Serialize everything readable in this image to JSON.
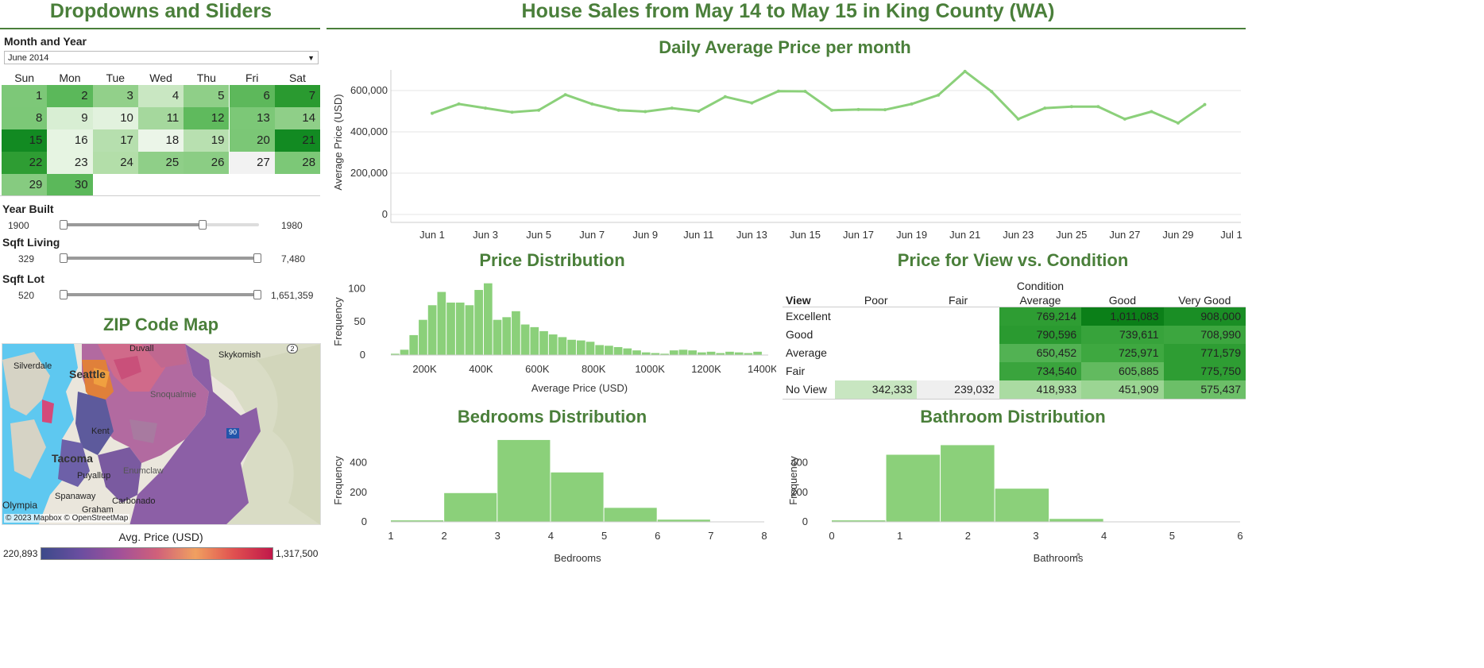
{
  "left_panel": {
    "title": "Dropdowns and Sliders",
    "month_year": {
      "label": "Month and Year",
      "value": "June 2014"
    },
    "calendar": {
      "weekdays": [
        "Sun",
        "Mon",
        "Tue",
        "Wed",
        "Thu",
        "Fri",
        "Sat"
      ],
      "days": [
        {
          "d": "1",
          "c": "#7dc878"
        },
        {
          "d": "2",
          "c": "#5bb85a"
        },
        {
          "d": "3",
          "c": "#92d08a"
        },
        {
          "d": "4",
          "c": "#c9e7c2"
        },
        {
          "d": "5",
          "c": "#8fcf88"
        },
        {
          "d": "6",
          "c": "#5db85b"
        },
        {
          "d": "7",
          "c": "#2a9a30"
        },
        {
          "d": "8",
          "c": "#7cc877"
        },
        {
          "d": "9",
          "c": "#d8eed3"
        },
        {
          "d": "10",
          "c": "#e2f2de"
        },
        {
          "d": "11",
          "c": "#a5d89d"
        },
        {
          "d": "12",
          "c": "#5fba5d"
        },
        {
          "d": "13",
          "c": "#7cc877"
        },
        {
          "d": "14",
          "c": "#8fcf88"
        },
        {
          "d": "15",
          "c": "#128a22"
        },
        {
          "d": "16",
          "c": "#e6f4e2"
        },
        {
          "d": "17",
          "c": "#b6dfae"
        },
        {
          "d": "18",
          "c": "#ebf5e8"
        },
        {
          "d": "19",
          "c": "#b8e0b0"
        },
        {
          "d": "20",
          "c": "#7bc776"
        },
        {
          "d": "21",
          "c": "#128a22"
        },
        {
          "d": "22",
          "c": "#2e9d33"
        },
        {
          "d": "23",
          "c": "#e6f4e2"
        },
        {
          "d": "24",
          "c": "#b3dea9"
        },
        {
          "d": "25",
          "c": "#8fcf88"
        },
        {
          "d": "26",
          "c": "#8bcd84"
        },
        {
          "d": "27",
          "c": "#f2f2f2"
        },
        {
          "d": "28",
          "c": "#7cc877"
        },
        {
          "d": "29",
          "c": "#86cb80"
        },
        {
          "d": "30",
          "c": "#5bb85a"
        }
      ]
    },
    "sliders": [
      {
        "label": "Year Built",
        "min_text": "1900",
        "max_text": "1980",
        "low": 0.0,
        "high": 0.72
      },
      {
        "label": "Sqft Living",
        "min_text": "329",
        "max_text": "7,480",
        "low": 0.0,
        "high": 1.0
      },
      {
        "label": "Sqft Lot",
        "min_text": "520",
        "max_text": "1,651,359",
        "low": 0.0,
        "high": 1.0
      }
    ],
    "map": {
      "title": "ZIP Code Map",
      "places": [
        "Skykomish",
        "Silverdale",
        "Seattle",
        "Duvall",
        "Snoqualmie",
        "Kent",
        "Tacoma",
        "Puyallup",
        "Enumclaw",
        "Spanaway",
        "Carbonado",
        "Graham",
        "Olympia"
      ],
      "highway_labels": [
        "2",
        "90"
      ],
      "attribution": "© 2023 Mapbox © OpenStreetMap",
      "legend_title": "Avg. Price  (USD)",
      "legend_min": "220,893",
      "legend_max": "1,317,500"
    }
  },
  "header": {
    "title": "House Sales from May 14 to May 15 in King County (WA)"
  },
  "line_chart_title": "Daily Average Price per month",
  "price_dist_title": "Price Distribution",
  "heat_title": "Price for View vs. Condition",
  "bedrooms_title": "Bedrooms Distribution",
  "bathroom_title": "Bathroom Distribution",
  "heat_table": {
    "condition_label": "Condition",
    "row_header": "View",
    "columns": [
      "Poor",
      "Fair",
      "Average",
      "Good",
      "Very Good"
    ],
    "rows": [
      {
        "name": "Excellent",
        "cells": [
          {
            "v": "",
            "c": "#ffffff"
          },
          {
            "v": "",
            "c": "#ffffff"
          },
          {
            "v": "769,214",
            "c": "#2e9d33"
          },
          {
            "v": "1,011,083",
            "c": "#0b7f18"
          },
          {
            "v": "908,000",
            "c": "#1a8e25"
          }
        ]
      },
      {
        "name": "Good",
        "cells": [
          {
            "v": "",
            "c": "#ffffff"
          },
          {
            "v": "",
            "c": "#ffffff"
          },
          {
            "v": "790,596",
            "c": "#2a9a30"
          },
          {
            "v": "739,611",
            "c": "#37a33b"
          },
          {
            "v": "708,990",
            "c": "#3ca63f"
          }
        ]
      },
      {
        "name": "Average",
        "cells": [
          {
            "v": "",
            "c": "#ffffff"
          },
          {
            "v": "",
            "c": "#ffffff"
          },
          {
            "v": "650,452",
            "c": "#52b253"
          },
          {
            "v": "725,971",
            "c": "#3ea840"
          },
          {
            "v": "771,579",
            "c": "#2e9d33"
          }
        ]
      },
      {
        "name": "Fair",
        "cells": [
          {
            "v": "",
            "c": "#ffffff"
          },
          {
            "v": "",
            "c": "#ffffff"
          },
          {
            "v": "734,540",
            "c": "#3aa43d"
          },
          {
            "v": "605,885",
            "c": "#62ba5f"
          },
          {
            "v": "775,750",
            "c": "#2e9d33"
          }
        ]
      },
      {
        "name": "No View",
        "cells": [
          {
            "v": "342,333",
            "c": "#c8e6c1"
          },
          {
            "v": "239,032",
            "c": "#efefef"
          },
          {
            "v": "418,933",
            "c": "#aadba2"
          },
          {
            "v": "451,909",
            "c": "#9bd593"
          },
          {
            "v": "575,437",
            "c": "#6cbf68"
          }
        ]
      }
    ]
  },
  "colors": {
    "accent": "#4a7f3a",
    "series": "#8bd07a"
  },
  "chart_data": [
    {
      "type": "line",
      "title": "Daily Average Price per month",
      "xlabel": "",
      "ylabel": "Average Price (USD)",
      "x": [
        "Jun 1",
        "Jun 2",
        "Jun 3",
        "Jun 4",
        "Jun 5",
        "Jun 6",
        "Jun 7",
        "Jun 8",
        "Jun 9",
        "Jun 10",
        "Jun 11",
        "Jun 12",
        "Jun 13",
        "Jun 14",
        "Jun 15",
        "Jun 16",
        "Jun 17",
        "Jun 18",
        "Jun 19",
        "Jun 20",
        "Jun 21",
        "Jun 22",
        "Jun 23",
        "Jun 24",
        "Jun 25",
        "Jun 26",
        "Jun 27",
        "Jun 28",
        "Jun 29",
        "Jun 30"
      ],
      "values": [
        490000,
        535000,
        515000,
        495000,
        505000,
        580000,
        535000,
        505000,
        498000,
        515000,
        500000,
        570000,
        540000,
        597000,
        596000,
        505000,
        508000,
        507000,
        535000,
        578000,
        693000,
        595000,
        462000,
        515000,
        522000,
        522000,
        462000,
        498000,
        443000,
        532000
      ],
      "xticks": [
        "Jun 1",
        "Jun 3",
        "Jun 5",
        "Jun 7",
        "Jun 9",
        "Jun 11",
        "Jun 13",
        "Jun 15",
        "Jun 17",
        "Jun 19",
        "Jun 21",
        "Jun 23",
        "Jun 25",
        "Jun 27",
        "Jun 29",
        "Jul 1"
      ],
      "yticks": [
        "0",
        "200,000",
        "400,000",
        "600,000"
      ],
      "ylim": [
        0,
        700000
      ],
      "grid": true
    },
    {
      "type": "bar",
      "title": "Price Distribution",
      "xlabel": "Average Price (USD)",
      "ylabel": "Frequency",
      "bin_start": 80000,
      "bin_width": 33000,
      "values": [
        2,
        8,
        30,
        53,
        75,
        95,
        79,
        79,
        75,
        98,
        108,
        53,
        57,
        66,
        46,
        42,
        36,
        31,
        27,
        23,
        22,
        20,
        15,
        14,
        12,
        10,
        7,
        4,
        3,
        2,
        7,
        8,
        7,
        4,
        5,
        3,
        5,
        4,
        3,
        5
      ],
      "xticks": [
        "200K",
        "400K",
        "600K",
        "800K",
        "1000K",
        "1200K",
        "1400K"
      ],
      "xtick_values": [
        200000,
        400000,
        600000,
        800000,
        1000000,
        1200000,
        1400000
      ],
      "yticks": [
        "0",
        "50",
        "100"
      ],
      "xlim": [
        80000,
        1420000
      ],
      "ylim": [
        0,
        110
      ]
    },
    {
      "type": "bar",
      "title": "Bedrooms Distribution",
      "xlabel": "Bedrooms",
      "ylabel": "Frequency",
      "bins": [
        [
          1,
          2
        ],
        [
          2,
          3
        ],
        [
          3,
          4
        ],
        [
          4,
          5
        ],
        [
          5,
          6
        ],
        [
          6,
          7
        ]
      ],
      "values": [
        10,
        195,
        555,
        335,
        95,
        15
      ],
      "xticks": [
        "1",
        "2",
        "3",
        "4",
        "5",
        "6",
        "7",
        "8"
      ],
      "yticks": [
        "0",
        "200",
        "400"
      ],
      "xlim": [
        1,
        8
      ],
      "ylim": [
        0,
        560
      ]
    },
    {
      "type": "bar",
      "title": "Bathroom Distribution",
      "xlabel": "Bathrooms",
      "ylabel": "Frequency",
      "bins": [
        [
          0,
          0.8
        ],
        [
          0.8,
          1.6
        ],
        [
          1.6,
          2.4
        ],
        [
          2.4,
          3.2
        ],
        [
          3.2,
          4.0
        ]
      ],
      "values": [
        10,
        455,
        520,
        225,
        20
      ],
      "xticks": [
        "0",
        "1",
        "2",
        "3",
        "4",
        "5",
        "6"
      ],
      "yticks": [
        "0",
        "200",
        "400"
      ],
      "xlim": [
        0,
        6
      ],
      "ylim": [
        0,
        560
      ]
    }
  ]
}
